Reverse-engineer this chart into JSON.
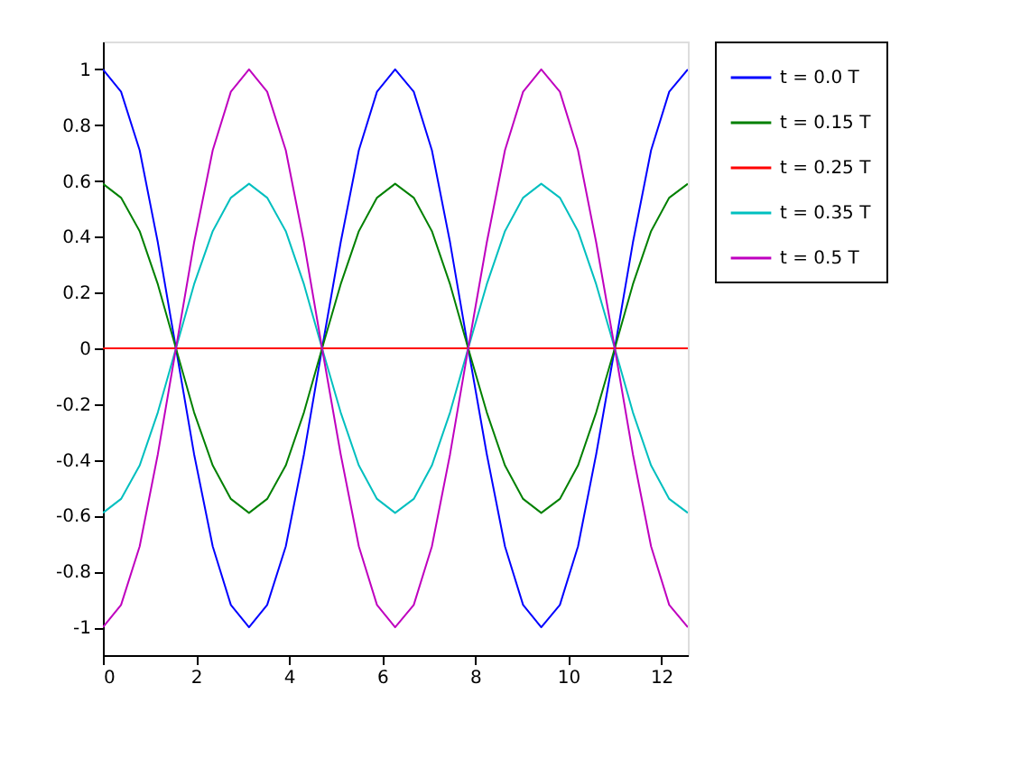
{
  "chart_data": {
    "type": "line",
    "x": [
      0,
      0.39,
      0.79,
      1.18,
      1.57,
      1.96,
      2.36,
      2.75,
      3.14,
      3.53,
      3.93,
      4.32,
      4.71,
      5.11,
      5.5,
      5.89,
      6.28,
      6.68,
      7.07,
      7.46,
      7.85,
      8.25,
      8.64,
      9.03,
      9.42,
      9.82,
      10.21,
      10.6,
      11.0,
      11.39,
      11.78,
      12.17,
      12.57
    ],
    "series": [
      {
        "name": "t = 0.0 T",
        "color": "#0000ff",
        "values": [
          1,
          0.92,
          0.71,
          0.38,
          0,
          -0.38,
          -0.71,
          -0.92,
          -1,
          -0.92,
          -0.71,
          -0.38,
          0,
          0.38,
          0.71,
          0.92,
          1,
          0.92,
          0.71,
          0.38,
          0,
          -0.38,
          -0.71,
          -0.92,
          -1,
          -0.92,
          -0.71,
          -0.38,
          0,
          0.38,
          0.71,
          0.92,
          1
        ]
      },
      {
        "name": "t = 0.15 T",
        "color": "#008000",
        "values": [
          0.59,
          0.54,
          0.42,
          0.23,
          0,
          -0.23,
          -0.42,
          -0.54,
          -0.59,
          -0.54,
          -0.42,
          -0.23,
          0,
          0.23,
          0.42,
          0.54,
          0.59,
          0.54,
          0.42,
          0.23,
          0,
          -0.23,
          -0.42,
          -0.54,
          -0.59,
          -0.54,
          -0.42,
          -0.23,
          0,
          0.23,
          0.42,
          0.54,
          0.59
        ]
      },
      {
        "name": "t = 0.25 T",
        "color": "#ff0000",
        "values": [
          0,
          0,
          0,
          0,
          0,
          0,
          0,
          0,
          0,
          0,
          0,
          0,
          0,
          0,
          0,
          0,
          0,
          0,
          0,
          0,
          0,
          0,
          0,
          0,
          0,
          0,
          0,
          0,
          0,
          0,
          0,
          0,
          0
        ]
      },
      {
        "name": "t = 0.35 T",
        "color": "#00bfbf",
        "values": [
          -0.59,
          -0.54,
          -0.42,
          -0.23,
          0,
          0.23,
          0.42,
          0.54,
          0.59,
          0.54,
          0.42,
          0.23,
          0,
          -0.23,
          -0.42,
          -0.54,
          -0.59,
          -0.54,
          -0.42,
          -0.23,
          0,
          0.23,
          0.42,
          0.54,
          0.59,
          0.54,
          0.42,
          0.23,
          0,
          -0.23,
          -0.42,
          -0.54,
          -0.59
        ]
      },
      {
        "name": "t = 0.5 T",
        "color": "#bf00bf",
        "values": [
          -1,
          -0.92,
          -0.71,
          -0.38,
          0,
          0.38,
          0.71,
          0.92,
          1,
          0.92,
          0.71,
          0.38,
          0,
          -0.38,
          -0.71,
          -0.92,
          -1,
          -0.92,
          -0.71,
          -0.38,
          0,
          0.38,
          0.71,
          0.92,
          1,
          0.92,
          0.71,
          0.38,
          0,
          -0.38,
          -0.71,
          -0.92,
          -1
        ]
      }
    ],
    "xlim": [
      0,
      12.57
    ],
    "xticks": [
      0,
      2,
      4,
      6,
      8,
      10,
      12
    ],
    "ylim": [
      -1.1,
      1.1
    ],
    "yticks": [
      -1,
      -0.8,
      -0.6,
      -0.4,
      -0.2,
      0,
      0.2,
      0.4,
      0.6,
      0.8,
      1
    ],
    "grid": false,
    "legend": "top right",
    "marker": "none",
    "line_style": "solid"
  }
}
